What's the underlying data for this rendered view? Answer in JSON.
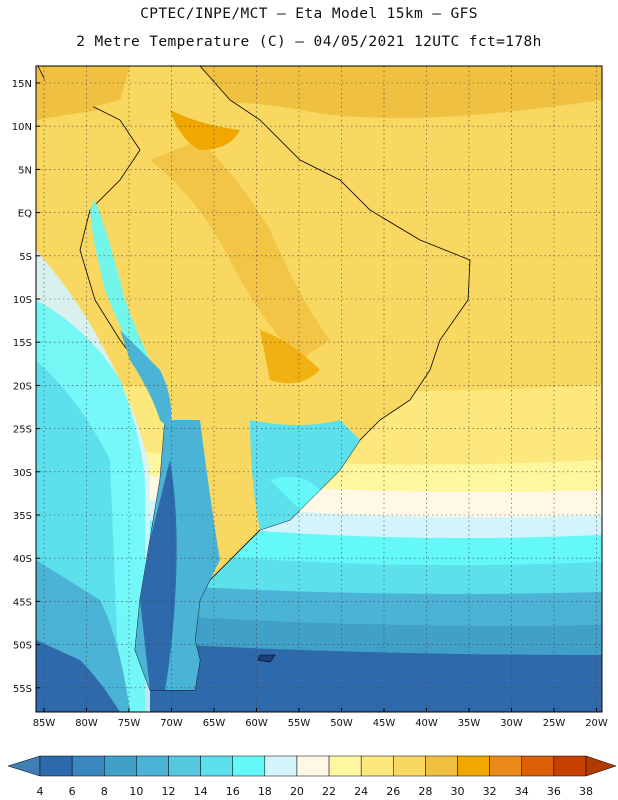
{
  "header": {
    "title_line1": "CPTEC/INPE/MCT –  Eta Model 15km – GFS",
    "title_line2": "2 Metre Temperature (C) – 04/05/2021 12UTC fct=178h"
  },
  "map": {
    "lat_labels": [
      "15N",
      "10N",
      "5N",
      "EQ",
      "5S",
      "10S",
      "15S",
      "20S",
      "25S",
      "30S",
      "35S",
      "40S",
      "45S",
      "50S",
      "55S"
    ],
    "lon_labels": [
      "85W",
      "80W",
      "75W",
      "70W",
      "65W",
      "60W",
      "55W",
      "50W",
      "45W",
      "40W",
      "35W",
      "30W",
      "25W",
      "20W"
    ]
  },
  "colorbar": {
    "labels": [
      "4",
      "6",
      "8",
      "10",
      "12",
      "14",
      "16",
      "18",
      "20",
      "22",
      "24",
      "26",
      "28",
      "30",
      "32",
      "34",
      "36",
      "38"
    ],
    "colors": {
      "lt4": "#3f7fb5",
      "4-6": "#2e6aab",
      "6-8": "#3a86bf",
      "8-10": "#40a0c8",
      "10-12": "#4bb4d6",
      "12-14": "#55c8e0",
      "14-16": "#5ce0ec",
      "16-18": "#64f8f8",
      "18-20": "#d4f4fc",
      "20-22": "#fff8e4",
      "22-24": "#fff6a0",
      "24-26": "#fce87c",
      "26-28": "#f8d860",
      "28-30": "#f0c040",
      "30-32": "#f0a800",
      "32-34": "#ea8a18",
      "34-36": "#dc6008",
      "36-38": "#c84000",
      "gt38": "#b03a00"
    }
  }
}
